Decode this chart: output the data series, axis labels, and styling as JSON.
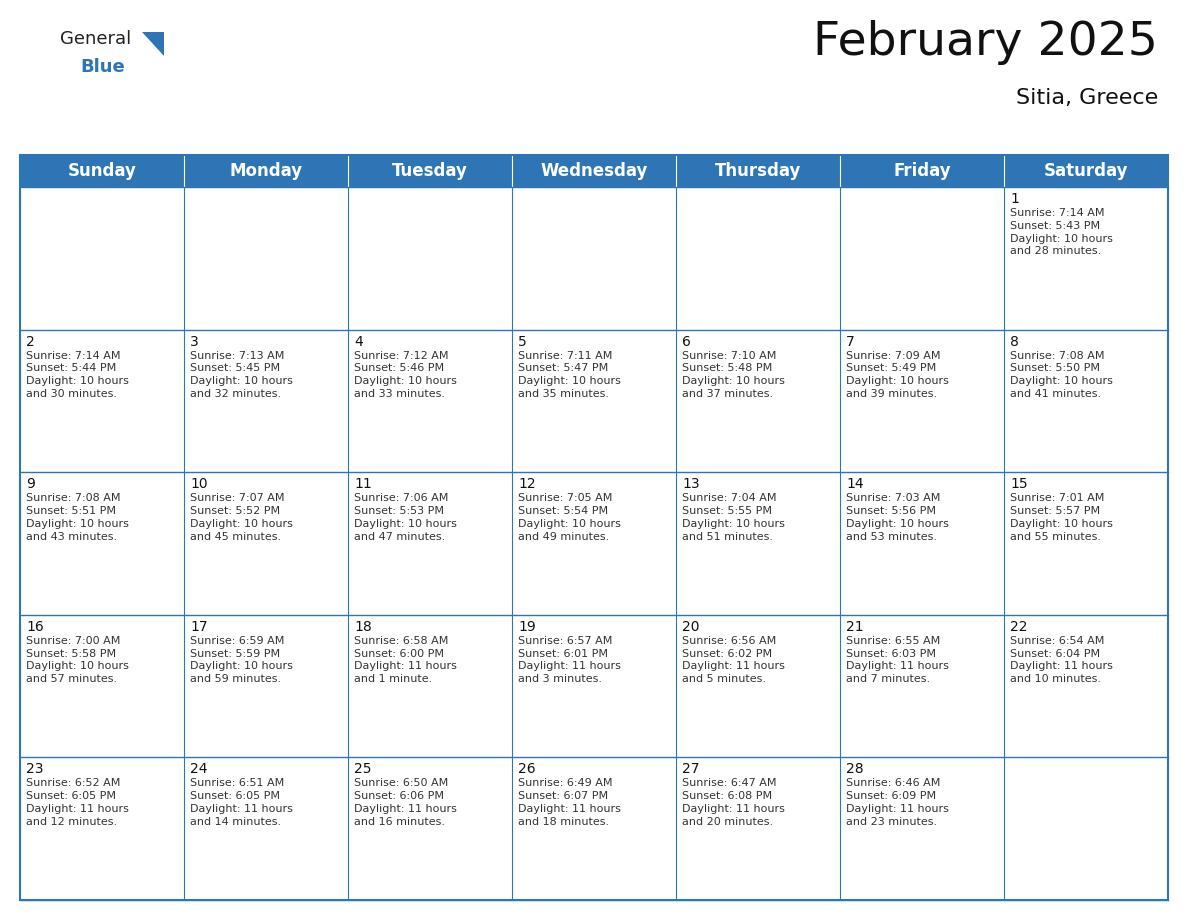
{
  "title": "February 2025",
  "subtitle": "Sitia, Greece",
  "header_color": "#2E75B6",
  "header_text_color": "#FFFFFF",
  "border_color": "#2E75B6",
  "cell_border_color": "#AAAAAA",
  "day_headers": [
    "Sunday",
    "Monday",
    "Tuesday",
    "Wednesday",
    "Thursday",
    "Friday",
    "Saturday"
  ],
  "title_fontsize": 34,
  "subtitle_fontsize": 16,
  "header_fontsize": 12,
  "day_num_fontsize": 10,
  "cell_text_fontsize": 8,
  "logo_general_color": "#222222",
  "logo_blue_color": "#2E75B6",
  "logo_triangle_color": "#2E75B6",
  "calendar": [
    [
      null,
      null,
      null,
      null,
      null,
      null,
      {
        "day": 1,
        "sunrise": "7:14 AM",
        "sunset": "5:43 PM",
        "daylight": "10 hours\nand 28 minutes."
      }
    ],
    [
      {
        "day": 2,
        "sunrise": "7:14 AM",
        "sunset": "5:44 PM",
        "daylight": "10 hours\nand 30 minutes."
      },
      {
        "day": 3,
        "sunrise": "7:13 AM",
        "sunset": "5:45 PM",
        "daylight": "10 hours\nand 32 minutes."
      },
      {
        "day": 4,
        "sunrise": "7:12 AM",
        "sunset": "5:46 PM",
        "daylight": "10 hours\nand 33 minutes."
      },
      {
        "day": 5,
        "sunrise": "7:11 AM",
        "sunset": "5:47 PM",
        "daylight": "10 hours\nand 35 minutes."
      },
      {
        "day": 6,
        "sunrise": "7:10 AM",
        "sunset": "5:48 PM",
        "daylight": "10 hours\nand 37 minutes."
      },
      {
        "day": 7,
        "sunrise": "7:09 AM",
        "sunset": "5:49 PM",
        "daylight": "10 hours\nand 39 minutes."
      },
      {
        "day": 8,
        "sunrise": "7:08 AM",
        "sunset": "5:50 PM",
        "daylight": "10 hours\nand 41 minutes."
      }
    ],
    [
      {
        "day": 9,
        "sunrise": "7:08 AM",
        "sunset": "5:51 PM",
        "daylight": "10 hours\nand 43 minutes."
      },
      {
        "day": 10,
        "sunrise": "7:07 AM",
        "sunset": "5:52 PM",
        "daylight": "10 hours\nand 45 minutes."
      },
      {
        "day": 11,
        "sunrise": "7:06 AM",
        "sunset": "5:53 PM",
        "daylight": "10 hours\nand 47 minutes."
      },
      {
        "day": 12,
        "sunrise": "7:05 AM",
        "sunset": "5:54 PM",
        "daylight": "10 hours\nand 49 minutes."
      },
      {
        "day": 13,
        "sunrise": "7:04 AM",
        "sunset": "5:55 PM",
        "daylight": "10 hours\nand 51 minutes."
      },
      {
        "day": 14,
        "sunrise": "7:03 AM",
        "sunset": "5:56 PM",
        "daylight": "10 hours\nand 53 minutes."
      },
      {
        "day": 15,
        "sunrise": "7:01 AM",
        "sunset": "5:57 PM",
        "daylight": "10 hours\nand 55 minutes."
      }
    ],
    [
      {
        "day": 16,
        "sunrise": "7:00 AM",
        "sunset": "5:58 PM",
        "daylight": "10 hours\nand 57 minutes."
      },
      {
        "day": 17,
        "sunrise": "6:59 AM",
        "sunset": "5:59 PM",
        "daylight": "10 hours\nand 59 minutes."
      },
      {
        "day": 18,
        "sunrise": "6:58 AM",
        "sunset": "6:00 PM",
        "daylight": "11 hours\nand 1 minute."
      },
      {
        "day": 19,
        "sunrise": "6:57 AM",
        "sunset": "6:01 PM",
        "daylight": "11 hours\nand 3 minutes."
      },
      {
        "day": 20,
        "sunrise": "6:56 AM",
        "sunset": "6:02 PM",
        "daylight": "11 hours\nand 5 minutes."
      },
      {
        "day": 21,
        "sunrise": "6:55 AM",
        "sunset": "6:03 PM",
        "daylight": "11 hours\nand 7 minutes."
      },
      {
        "day": 22,
        "sunrise": "6:54 AM",
        "sunset": "6:04 PM",
        "daylight": "11 hours\nand 10 minutes."
      }
    ],
    [
      {
        "day": 23,
        "sunrise": "6:52 AM",
        "sunset": "6:05 PM",
        "daylight": "11 hours\nand 12 minutes."
      },
      {
        "day": 24,
        "sunrise": "6:51 AM",
        "sunset": "6:05 PM",
        "daylight": "11 hours\nand 14 minutes."
      },
      {
        "day": 25,
        "sunrise": "6:50 AM",
        "sunset": "6:06 PM",
        "daylight": "11 hours\nand 16 minutes."
      },
      {
        "day": 26,
        "sunrise": "6:49 AM",
        "sunset": "6:07 PM",
        "daylight": "11 hours\nand 18 minutes."
      },
      {
        "day": 27,
        "sunrise": "6:47 AM",
        "sunset": "6:08 PM",
        "daylight": "11 hours\nand 20 minutes."
      },
      {
        "day": 28,
        "sunrise": "6:46 AM",
        "sunset": "6:09 PM",
        "daylight": "11 hours\nand 23 minutes."
      },
      null
    ]
  ]
}
